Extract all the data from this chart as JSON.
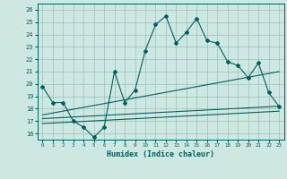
{
  "title": "",
  "xlabel": "Humidex (Indice chaleur)",
  "ylabel": "",
  "xlim": [
    -0.5,
    23.5
  ],
  "ylim": [
    15.5,
    26.5
  ],
  "yticks": [
    16,
    17,
    18,
    19,
    20,
    21,
    22,
    23,
    24,
    25,
    26
  ],
  "xticks": [
    0,
    1,
    2,
    3,
    4,
    5,
    6,
    7,
    8,
    9,
    10,
    11,
    12,
    13,
    14,
    15,
    16,
    17,
    18,
    19,
    20,
    21,
    22,
    23
  ],
  "background_color": "#cde8e0",
  "grid_color": "#9dbfb8",
  "line_color": "#006060",
  "main_line": {
    "x": [
      0,
      1,
      2,
      3,
      4,
      5,
      6,
      7,
      8,
      9,
      10,
      11,
      12,
      13,
      14,
      15,
      16,
      17,
      18,
      19,
      20,
      21,
      22,
      23
    ],
    "y": [
      19.8,
      18.5,
      18.5,
      17.0,
      16.5,
      15.7,
      16.5,
      21.0,
      18.5,
      19.5,
      22.7,
      24.8,
      25.5,
      23.3,
      24.2,
      25.3,
      23.5,
      23.3,
      21.8,
      21.5,
      20.5,
      21.7,
      19.3,
      18.2
    ]
  },
  "line2": {
    "x": [
      0,
      23
    ],
    "y": [
      17.5,
      21.0
    ]
  },
  "line3": {
    "x": [
      0,
      23
    ],
    "y": [
      17.2,
      18.2
    ]
  },
  "line4": {
    "x": [
      0,
      23
    ],
    "y": [
      16.8,
      17.8
    ]
  }
}
